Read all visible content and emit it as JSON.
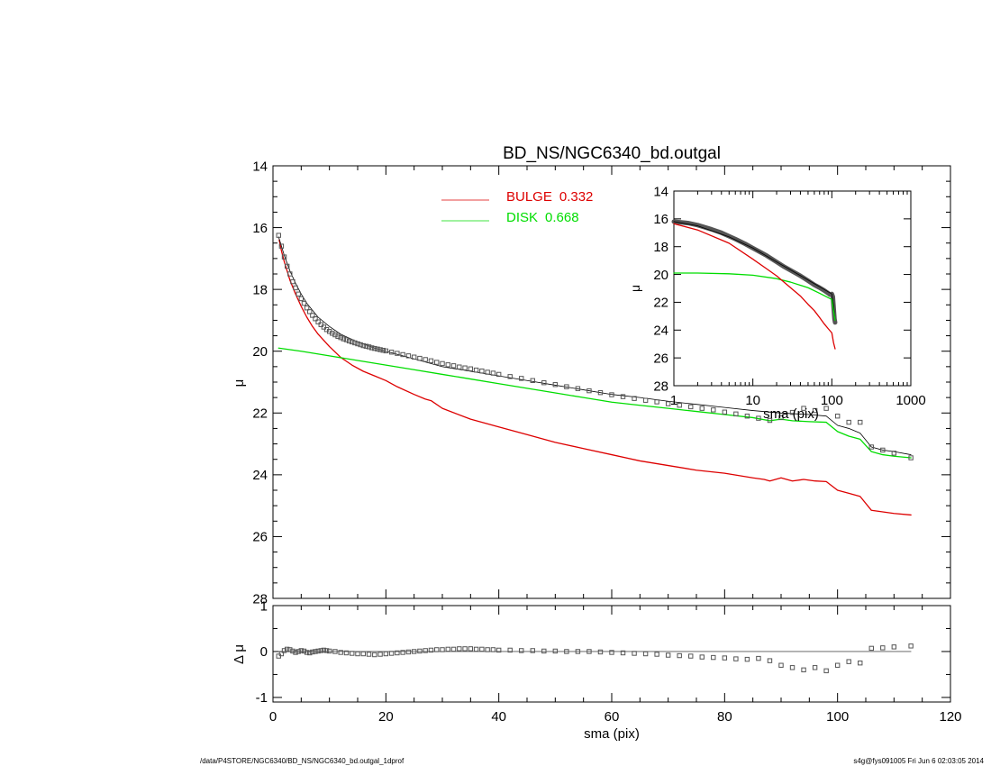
{
  "footer": {
    "left": "/data/P4STORE/NGC6340/BD_NS/NGC6340_bd.outgal_1dprof",
    "right": "s4g@fys091005  Fri Jun  6 02:03:05 2014"
  },
  "colors": {
    "bulge": "#dd0000",
    "disk": "#00dd00",
    "model": "#000000",
    "data": "#555555"
  },
  "chart_data": [
    {
      "id": "main",
      "type": "line",
      "title": "BD_NS/NGC6340_bd.outgal",
      "xlabel": "",
      "ylabel": "μ",
      "xlim": [
        0,
        120
      ],
      "ylim": [
        28,
        14
      ],
      "yreversed": true,
      "yticks": [
        14,
        16,
        18,
        20,
        22,
        24,
        26,
        28
      ],
      "xticks": [
        0,
        20,
        40,
        60,
        80,
        100,
        120
      ],
      "show_xticklabels": false,
      "legend": {
        "placement": "top-center",
        "entries": [
          {
            "series": "bulge",
            "label": "BULGE",
            "value": "0.332",
            "color": "#dd0000"
          },
          {
            "series": "disk",
            "label": "DISK",
            "value": "0.668",
            "color": "#00dd00"
          }
        ]
      },
      "series": [
        {
          "key": "bulge",
          "name": "BULGE",
          "style": "line",
          "color": "#dd0000",
          "x": [
            1.1,
            1.5,
            2,
            2.5,
            3,
            4,
            5,
            6,
            7,
            8,
            10,
            12,
            14,
            16,
            18,
            20,
            22,
            25,
            27,
            28,
            30,
            35,
            40,
            45,
            50,
            55,
            60,
            65,
            70,
            75,
            80,
            85,
            87,
            88,
            89,
            90,
            92,
            94,
            96,
            98,
            100,
            102,
            104,
            106,
            108,
            110,
            113
          ],
          "y": [
            16.4,
            16.75,
            17.1,
            17.4,
            17.7,
            18.15,
            18.55,
            18.9,
            19.2,
            19.45,
            19.85,
            20.2,
            20.45,
            20.65,
            20.8,
            20.95,
            21.15,
            21.4,
            21.55,
            21.6,
            21.85,
            22.2,
            22.45,
            22.7,
            22.95,
            23.15,
            23.35,
            23.55,
            23.7,
            23.85,
            23.95,
            24.1,
            24.15,
            24.2,
            24.15,
            24.1,
            24.2,
            24.15,
            24.2,
            24.22,
            24.5,
            24.6,
            24.7,
            25.15,
            25.2,
            25.25,
            25.3
          ]
        },
        {
          "key": "disk",
          "name": "DISK",
          "style": "line",
          "color": "#00dd00",
          "x": [
            1,
            5,
            10,
            15,
            20,
            25,
            30,
            35,
            40,
            45,
            50,
            55,
            60,
            65,
            70,
            75,
            80,
            85,
            88,
            90,
            92,
            95,
            98,
            100,
            102,
            104,
            106,
            108,
            110,
            113
          ],
          "y": [
            19.9,
            20.0,
            20.15,
            20.3,
            20.45,
            20.6,
            20.75,
            20.9,
            21.05,
            21.2,
            21.35,
            21.5,
            21.65,
            21.75,
            21.85,
            21.95,
            22.05,
            22.15,
            22.25,
            22.2,
            22.25,
            22.28,
            22.3,
            22.6,
            22.75,
            22.85,
            23.25,
            23.35,
            23.4,
            23.45
          ]
        },
        {
          "key": "model",
          "name": "",
          "style": "thin-line",
          "color": "#000000",
          "x": [
            1,
            2,
            3,
            4,
            5,
            6,
            8,
            10,
            12,
            15,
            18,
            20,
            25,
            30,
            35,
            40,
            45,
            50,
            55,
            60,
            65,
            70,
            75,
            80,
            85,
            90,
            95,
            98,
            100,
            102,
            104,
            106,
            108,
            110,
            113
          ],
          "y": [
            16.3,
            16.9,
            17.4,
            17.8,
            18.15,
            18.45,
            18.9,
            19.2,
            19.45,
            19.7,
            19.9,
            20.0,
            20.25,
            20.5,
            20.65,
            20.8,
            20.95,
            21.1,
            21.25,
            21.4,
            21.5,
            21.62,
            21.72,
            21.82,
            21.92,
            22.0,
            22.05,
            22.1,
            22.4,
            22.5,
            22.65,
            23.1,
            23.2,
            23.25,
            23.35
          ]
        },
        {
          "key": "data",
          "name": "",
          "style": "squares",
          "color": "#555555",
          "x": [
            1,
            1.5,
            2,
            2.5,
            3,
            3.5,
            4,
            4.5,
            5,
            5.5,
            6,
            6.5,
            7,
            7.5,
            8,
            8.5,
            9,
            9.5,
            10,
            10.5,
            11,
            11.5,
            12,
            12.5,
            13,
            13.5,
            14,
            14.5,
            15,
            15.5,
            16,
            16.5,
            17,
            17.5,
            18,
            18.5,
            19,
            19.5,
            20,
            21,
            22,
            23,
            24,
            25,
            26,
            27,
            28,
            29,
            30,
            31,
            32,
            33,
            34,
            35,
            36,
            37,
            38,
            39,
            40,
            42,
            44,
            46,
            48,
            50,
            52,
            54,
            56,
            58,
            60,
            62,
            64,
            66,
            68,
            70,
            72,
            74,
            76,
            78,
            80,
            82,
            84,
            86,
            88,
            90,
            92,
            94,
            96,
            98,
            100,
            102,
            104,
            106,
            108,
            110,
            113
          ],
          "y": [
            16.25,
            16.6,
            16.95,
            17.25,
            17.5,
            17.75,
            17.95,
            18.15,
            18.3,
            18.45,
            18.6,
            18.72,
            18.84,
            18.95,
            19.05,
            19.14,
            19.22,
            19.3,
            19.36,
            19.42,
            19.47,
            19.52,
            19.56,
            19.6,
            19.63,
            19.67,
            19.7,
            19.73,
            19.76,
            19.79,
            19.82,
            19.84,
            19.86,
            19.89,
            19.91,
            19.93,
            19.95,
            19.97,
            19.99,
            20.03,
            20.07,
            20.11,
            20.15,
            20.19,
            20.23,
            20.27,
            20.31,
            20.36,
            20.4,
            20.44,
            20.47,
            20.51,
            20.54,
            20.57,
            20.61,
            20.64,
            20.68,
            20.71,
            20.75,
            20.82,
            20.88,
            20.95,
            21.02,
            21.08,
            21.15,
            21.21,
            21.28,
            21.34,
            21.41,
            21.47,
            21.53,
            21.59,
            21.64,
            21.7,
            21.75,
            21.8,
            21.85,
            21.9,
            21.97,
            22.03,
            22.1,
            22.17,
            22.24,
            22.15,
            21.98,
            21.85,
            21.92,
            21.85,
            22.1,
            22.3,
            22.3,
            23.1,
            23.2,
            23.3,
            23.45
          ]
        }
      ]
    },
    {
      "id": "inset",
      "type": "line",
      "title": "",
      "xlabel": "sma (pix)",
      "ylabel": "μ",
      "xscale": "log",
      "xlim": [
        1,
        1000
      ],
      "ylim": [
        28,
        14
      ],
      "yreversed": true,
      "yticks": [
        14,
        16,
        18,
        20,
        22,
        24,
        26,
        28
      ],
      "xticks": [
        1,
        10,
        100,
        1000
      ],
      "series": [
        {
          "key": "data",
          "name": "",
          "style": "thick-line",
          "color": "#555555",
          "x": [
            1,
            1.5,
            2,
            3,
            4,
            5,
            6,
            8,
            10,
            12,
            15,
            20,
            25,
            30,
            40,
            50,
            60,
            70,
            80,
            90,
            95,
            100,
            103,
            105,
            108,
            110
          ],
          "y": [
            16.2,
            16.3,
            16.45,
            16.75,
            17.0,
            17.25,
            17.45,
            17.8,
            18.1,
            18.35,
            18.65,
            19.1,
            19.45,
            19.7,
            20.1,
            20.45,
            20.75,
            20.95,
            21.15,
            21.35,
            21.45,
            21.4,
            21.6,
            22.25,
            23.2,
            23.45
          ]
        },
        {
          "key": "model",
          "name": "",
          "style": "thin-line",
          "color": "#000000",
          "x": [
            1,
            2,
            5,
            10,
            20,
            50,
            100,
            105,
            110
          ],
          "y": [
            16.2,
            16.5,
            17.3,
            18.1,
            19.1,
            20.4,
            21.4,
            22.2,
            23.3
          ]
        },
        {
          "key": "disk",
          "name": "",
          "style": "line",
          "color": "#00dd00",
          "x": [
            1,
            2,
            5,
            10,
            20,
            30,
            50,
            70,
            100,
            105,
            110
          ],
          "y": [
            19.9,
            19.9,
            19.95,
            20.05,
            20.3,
            20.55,
            20.95,
            21.35,
            21.8,
            22.6,
            23.3
          ]
        },
        {
          "key": "bulge",
          "name": "",
          "style": "line",
          "color": "#dd0000",
          "x": [
            1,
            2,
            5,
            10,
            15,
            20,
            30,
            40,
            50,
            60,
            70,
            80,
            90,
            100,
            105,
            110
          ],
          "y": [
            16.35,
            16.8,
            17.75,
            18.9,
            19.6,
            20.1,
            20.95,
            21.55,
            22.15,
            22.6,
            23.1,
            23.55,
            23.9,
            24.2,
            24.9,
            25.35
          ]
        }
      ]
    },
    {
      "id": "residual",
      "type": "scatter",
      "title": "",
      "xlabel": "sma (pix)",
      "ylabel": "Δ μ",
      "xlim": [
        0,
        120
      ],
      "ylim": [
        -1.1,
        1.0
      ],
      "yticks": [
        -1,
        0,
        1
      ],
      "xticks": [
        0,
        20,
        40,
        60,
        80,
        100,
        120
      ],
      "series": [
        {
          "key": "zero",
          "name": "",
          "style": "thin-line",
          "color": "#555555",
          "x": [
            1,
            113
          ],
          "y": [
            0,
            0
          ]
        },
        {
          "key": "residual",
          "name": "",
          "style": "squares",
          "color": "#555555",
          "x": [
            1,
            1.5,
            2,
            2.5,
            3,
            3.5,
            4,
            4.5,
            5,
            5.5,
            6,
            6.5,
            7,
            7.5,
            8,
            8.5,
            9,
            9.5,
            10,
            11,
            12,
            13,
            14,
            15,
            16,
            17,
            18,
            19,
            20,
            21,
            22,
            23,
            24,
            25,
            26,
            27,
            28,
            29,
            30,
            31,
            32,
            33,
            34,
            35,
            36,
            37,
            38,
            39,
            40,
            42,
            44,
            46,
            48,
            50,
            52,
            54,
            56,
            58,
            60,
            62,
            64,
            66,
            68,
            70,
            72,
            74,
            76,
            78,
            80,
            82,
            84,
            86,
            88,
            90,
            92,
            94,
            96,
            98,
            100,
            102,
            104,
            106,
            108,
            110,
            113
          ],
          "y": [
            -0.1,
            -0.05,
            0.02,
            0.05,
            0.04,
            0.01,
            -0.02,
            0.0,
            0.02,
            0.01,
            -0.02,
            -0.03,
            -0.01,
            0.0,
            0.01,
            0.02,
            0.03,
            0.02,
            0.01,
            0.0,
            -0.02,
            -0.03,
            -0.04,
            -0.05,
            -0.05,
            -0.06,
            -0.07,
            -0.06,
            -0.05,
            -0.04,
            -0.03,
            -0.02,
            -0.01,
            0.0,
            0.01,
            0.02,
            0.03,
            0.04,
            0.04,
            0.05,
            0.05,
            0.06,
            0.06,
            0.06,
            0.05,
            0.05,
            0.04,
            0.04,
            0.03,
            0.03,
            0.02,
            0.02,
            0.01,
            0.01,
            0.0,
            0.0,
            0.0,
            -0.01,
            -0.02,
            -0.03,
            -0.04,
            -0.05,
            -0.06,
            -0.08,
            -0.09,
            -0.1,
            -0.12,
            -0.13,
            -0.14,
            -0.16,
            -0.17,
            -0.15,
            -0.2,
            -0.3,
            -0.35,
            -0.4,
            -0.35,
            -0.42,
            -0.3,
            -0.22,
            -0.25,
            0.07,
            0.08,
            0.1,
            0.12
          ]
        }
      ]
    }
  ]
}
